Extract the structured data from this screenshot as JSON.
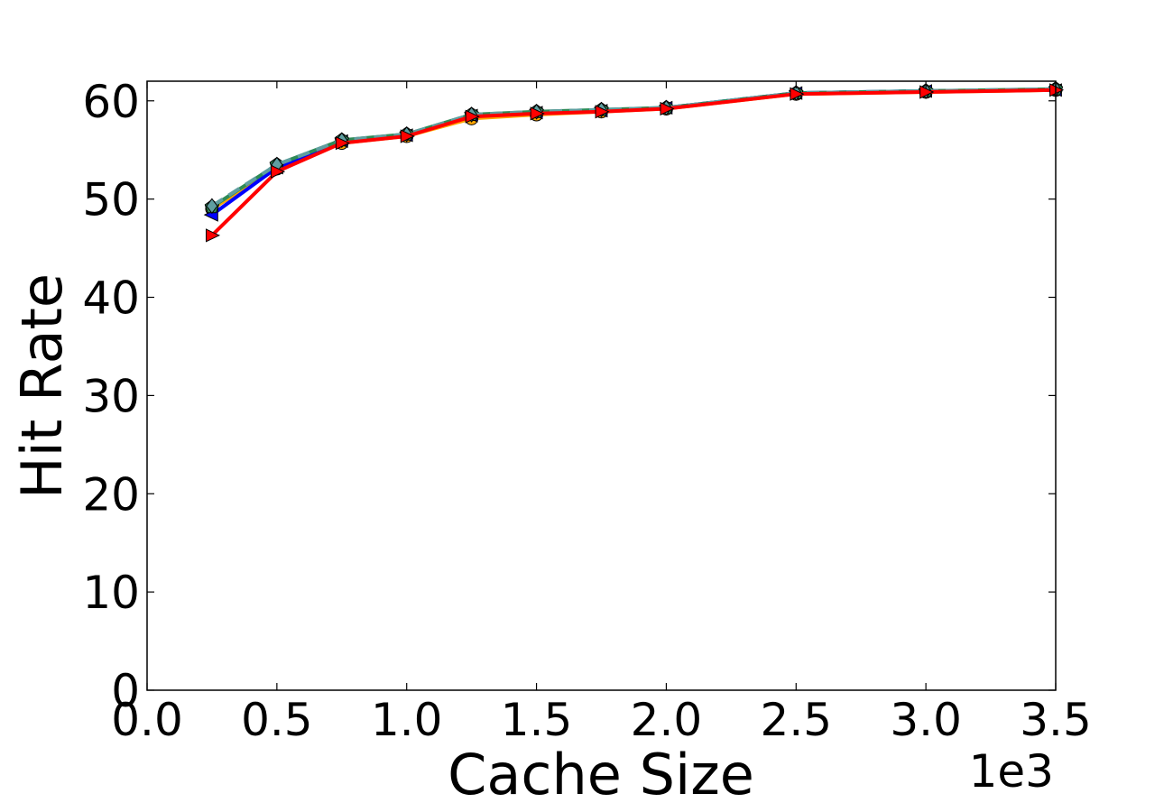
{
  "chart_data": {
    "type": "line",
    "xlabel": "Cache Size",
    "ylabel": "Hit Rate",
    "x_offset_label": "1e3",
    "xlim": [
      0.0,
      3.5
    ],
    "ylim": [
      0,
      62
    ],
    "x_ticks": [
      "0.0",
      "0.5",
      "1.0",
      "1.5",
      "2.0",
      "2.5",
      "3.0",
      "3.5"
    ],
    "y_ticks": [
      "0",
      "10",
      "20",
      "30",
      "40",
      "50",
      "60"
    ],
    "grid": false,
    "x": [
      0.25,
      0.5,
      0.75,
      1.0,
      1.25,
      1.5,
      1.75,
      2.0,
      2.5,
      3.0,
      3.5
    ],
    "series": [
      {
        "color": "#ffa500",
        "marker": "circle",
        "dash": "solid",
        "values": [
          49.0,
          53.1,
          55.7,
          56.4,
          58.2,
          58.6,
          58.9,
          59.2,
          60.7,
          60.9,
          61.1
        ]
      },
      {
        "color": "#0000ff",
        "marker": "triangle-left",
        "dash": "solid",
        "values": [
          48.4,
          53.2,
          55.9,
          56.5,
          58.5,
          58.8,
          59.0,
          59.3,
          60.8,
          61.0,
          61.1
        ]
      },
      {
        "color": "#2e8b57",
        "marker": "pentagon",
        "dash": "solid",
        "values": [
          49.2,
          53.5,
          56.0,
          56.6,
          58.6,
          58.9,
          59.1,
          59.3,
          60.8,
          61.0,
          61.2
        ]
      },
      {
        "color": "#5f9ea0",
        "marker": "diamond",
        "dash": "dashed",
        "values": [
          49.3,
          53.5,
          56.0,
          56.6,
          58.6,
          58.9,
          59.1,
          59.3,
          60.8,
          61.0,
          61.2
        ]
      },
      {
        "color": "#ff0000",
        "marker": "triangle-right",
        "dash": "solid",
        "values": [
          46.3,
          52.8,
          55.7,
          56.4,
          58.4,
          58.7,
          58.9,
          59.2,
          60.7,
          60.9,
          61.1
        ]
      }
    ]
  }
}
